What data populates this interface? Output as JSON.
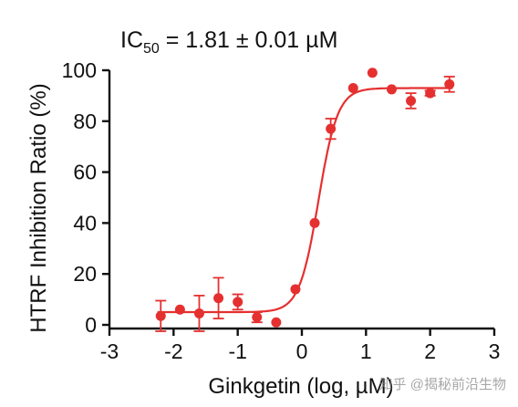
{
  "annotation": {
    "prefix": "IC",
    "subscript": "50",
    "suffix": " = 1.81 ± 0.01 µM"
  },
  "watermark": "知乎 @揭秘前沿生物",
  "chart_data": {
    "type": "scatter",
    "title": "",
    "xlabel": "Ginkgetin (log, µM)",
    "ylabel": "HTRF Inhibition Ratio (%)",
    "xlim": [
      -3,
      3
    ],
    "ylim": [
      0,
      100
    ],
    "x_ticks": [
      -3,
      -2,
      -1,
      0,
      1,
      2,
      3
    ],
    "y_ticks": [
      0,
      20,
      40,
      60,
      80,
      100
    ],
    "grid": false,
    "legend": "none",
    "color": "#e53030",
    "series": [
      {
        "x": [
          -2.2,
          -1.9,
          -1.6,
          -1.3,
          -1.0,
          -0.7,
          -0.4,
          -0.1,
          0.2,
          0.45,
          0.8,
          1.1,
          1.4,
          1.7,
          2.0,
          2.3
        ],
        "y": [
          3.5,
          6,
          4.5,
          10.5,
          9,
          3,
          1,
          14,
          40,
          77,
          93,
          99,
          92.5,
          88,
          91,
          94.5
        ],
        "error": [
          6,
          0,
          7,
          8,
          3,
          2,
          0,
          0,
          0,
          4,
          0,
          0,
          0,
          3,
          1,
          3
        ]
      }
    ],
    "fit_curve": {
      "model": "four-parameter logistic",
      "bottom": 5,
      "top": 93,
      "log_ic50": 0.26,
      "hill_slope": 2.9
    }
  }
}
